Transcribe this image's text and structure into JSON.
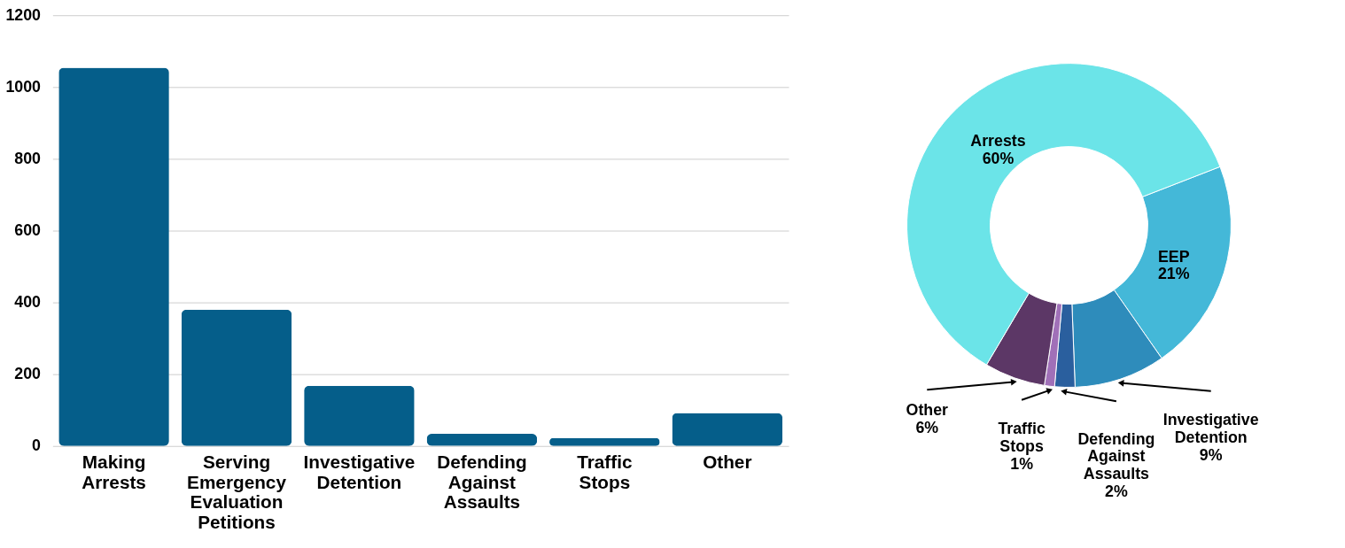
{
  "chart_data": [
    {
      "type": "bar",
      "categories": [
        "Making Arrests",
        "Serving Emergency Evaluation Petitions",
        "Investigative Detention",
        "Defending Against Assaults",
        "Traffic Stops",
        "Other"
      ],
      "values": [
        1054,
        380,
        168,
        34,
        22,
        92
      ],
      "color": "#055e8a",
      "ylim": [
        0,
        1200
      ],
      "yticks": [
        0,
        200,
        400,
        600,
        800,
        {
          "value": 1000,
          "label": "1000"
        },
        {
          "value": 1200,
          "label": "1200"
        }
      ],
      "grid": "y",
      "legend": false
    },
    {
      "type": "donut",
      "categories": [
        "EEP",
        "Investigative Detention",
        "Defending Against Assaults",
        "Traffic Stops",
        "Other",
        "Arrests"
      ],
      "values": [
        21,
        9,
        2,
        1,
        6,
        60
      ],
      "value_labels": [
        "21%",
        "9%",
        "2%",
        "1%",
        "6%",
        "60%"
      ],
      "colors": [
        "#44b8d8",
        "#2e8cbb",
        "#2a5f9e",
        "#a070b8",
        "#5c3766",
        "#6be4e8"
      ],
      "legend": false
    }
  ]
}
